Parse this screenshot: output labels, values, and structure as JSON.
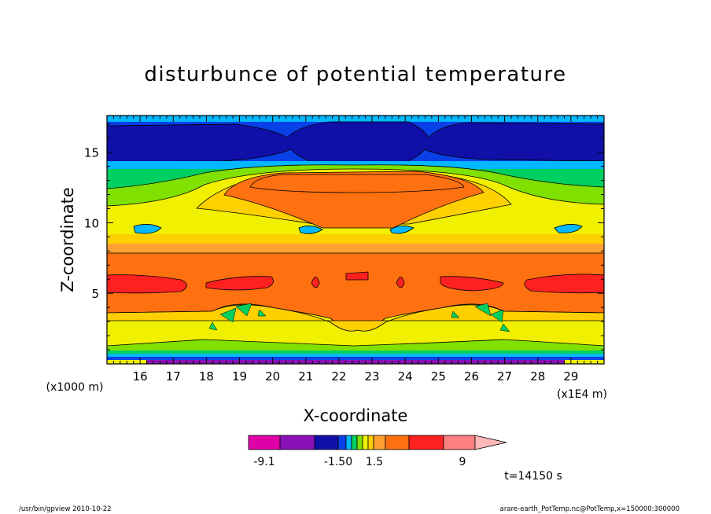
{
  "chart_data": {
    "type": "heatmap",
    "title": "disturbunce of potential temperature",
    "xlabel": "X-coordinate",
    "ylabel": "Z-coordinate",
    "x_unit": "(x1E4 m)",
    "y_unit": "(x1000 m)",
    "x_ticks": [
      "16",
      "17",
      "18",
      "19",
      "20",
      "21",
      "22",
      "23",
      "24",
      "25",
      "26",
      "27",
      "28",
      "29"
    ],
    "y_ticks": [
      "5",
      "10",
      "15"
    ],
    "xlim": [
      15.0,
      30.0
    ],
    "ylim": [
      0,
      17.6
    ],
    "colorbar": {
      "labels": [
        "-9.1",
        "-1.50",
        "1.5",
        "9"
      ],
      "colors": [
        "#e000a8",
        "#8a10b8",
        "#1010a8",
        "#0a40e8",
        "#00b8ff",
        "#00d060",
        "#80e000",
        "#f0f000",
        "#ffd000",
        "#ffa030",
        "#ff7010",
        "#ff2020",
        "#ff8080",
        "#ffb8b8"
      ]
    },
    "time_label": "t=14150 s",
    "footer_left": "/usr/bin/gpview   2010-10-22",
    "footer_right": "arare-earth_PotTemp.nc@PotTemp,x=150000:300000"
  }
}
